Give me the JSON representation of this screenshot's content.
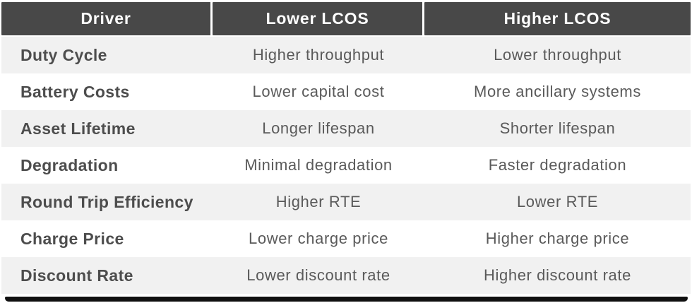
{
  "colors": {
    "header_bg": "#484848",
    "header_text": "#ffffff",
    "row_alt_bg": "#f1f1f1",
    "row_bg": "#ffffff",
    "driver_text": "#4d4d4d",
    "value_text": "#5a5a5a",
    "bottom_bar": "#101010"
  },
  "table": {
    "headers": [
      "Driver",
      "Lower LCOS",
      "Higher LCOS"
    ],
    "rows": [
      {
        "driver": "Duty Cycle",
        "lower": "Higher throughput",
        "higher": "Lower throughput"
      },
      {
        "driver": "Battery Costs",
        "lower": "Lower capital cost",
        "higher": "More ancillary systems"
      },
      {
        "driver": "Asset Lifetime",
        "lower": "Longer lifespan",
        "higher": "Shorter lifespan"
      },
      {
        "driver": "Degradation",
        "lower": "Minimal degradation",
        "higher": "Faster degradation"
      },
      {
        "driver": "Round Trip Efficiency",
        "lower": "Higher RTE",
        "higher": "Lower RTE"
      },
      {
        "driver": "Charge Price",
        "lower": "Lower charge price",
        "higher": "Higher charge price"
      },
      {
        "driver": "Discount Rate",
        "lower": "Lower discount rate",
        "higher": "Higher discount rate"
      }
    ]
  },
  "chart_data": {
    "type": "table",
    "title": "",
    "columns": [
      "Driver",
      "Lower LCOS",
      "Higher LCOS"
    ],
    "rows": [
      [
        "Duty Cycle",
        "Higher throughput",
        "Lower throughput"
      ],
      [
        "Battery Costs",
        "Lower capital cost",
        "More ancillary systems"
      ],
      [
        "Asset Lifetime",
        "Longer lifespan",
        "Shorter lifespan"
      ],
      [
        "Degradation",
        "Minimal degradation",
        "Faster degradation"
      ],
      [
        "Round Trip Efficiency",
        "Higher RTE",
        "Lower RTE"
      ],
      [
        "Charge Price",
        "Lower charge price",
        "Higher charge price"
      ],
      [
        "Discount Rate",
        "Lower discount rate",
        "Higher discount rate"
      ]
    ],
    "layout_hints": {
      "header_style": "dark-bg-white-bold-text",
      "row_striping": "odd-rows-light-gray",
      "driver_column_align": "left-bold",
      "value_columns_align": "center",
      "bottom_border": "thick-black-bar"
    }
  }
}
